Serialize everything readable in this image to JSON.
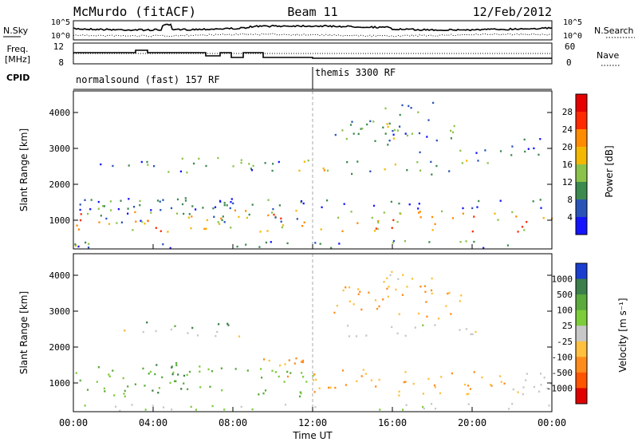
{
  "chart_data": [
    {
      "type": "line",
      "header": {
        "station": "McMurdo (fitACF)",
        "beam": "Beam 11",
        "date": "12/Feb/2012"
      },
      "panel": "noise",
      "left_label": "N.Sky",
      "right_label": "N.Search",
      "left_ticks": [
        "10^5",
        "10^0"
      ],
      "right_ticks": [
        "10^5",
        "10^0"
      ],
      "series": [
        {
          "name": "N.Sky",
          "style": "solid"
        },
        {
          "name": "N.Search",
          "style": "dotted"
        }
      ]
    },
    {
      "type": "line",
      "panel": "frequency",
      "left_label": "Freq. [MHz]",
      "right_label": "Nave",
      "left_ticks": [
        12,
        8
      ],
      "right_ticks": [
        60,
        0
      ],
      "series": [
        {
          "name": "Freq",
          "style": "solid"
        },
        {
          "name": "Nave",
          "style": "dotted"
        }
      ]
    },
    {
      "type": "table",
      "panel": "cpid",
      "label": "CPID",
      "modes": [
        {
          "text": "normalsound (fast) 157 RF",
          "start_hour": 0,
          "end_hour": 12
        },
        {
          "text": "themis 3300 RF",
          "start_hour": 12,
          "end_hour": 24
        }
      ]
    },
    {
      "type": "heatmap",
      "panel": "power",
      "ylabel": "Slant Range [km]",
      "ylim": [
        200,
        4600
      ],
      "yticks": [
        1000,
        2000,
        3000,
        4000
      ],
      "colorbar_label": "Power [dB]",
      "colorbar_ticks": [
        4,
        8,
        12,
        16,
        20,
        24,
        28
      ],
      "colorbar_colors": [
        "#1414ff",
        "#2a55b8",
        "#3d8a4e",
        "#8bc34a",
        "#f5b800",
        "#ff8c00",
        "#ff2a00",
        "#e60000"
      ],
      "blobs": [
        {
          "t0": 0.0,
          "t1": 24.0,
          "r0": 700,
          "r1": 1300,
          "level": 20
        },
        {
          "t0": 0.0,
          "t1": 24.0,
          "r0": 250,
          "r1": 450,
          "level": 10
        },
        {
          "t0": 0.3,
          "t1": 11.8,
          "r0": 950,
          "r1": 1650,
          "level": 8
        },
        {
          "t0": 1.0,
          "t1": 10.5,
          "r0": 2350,
          "r1": 2700,
          "level": 8
        },
        {
          "t0": 3.5,
          "t1": 8.5,
          "r0": 2500,
          "r1": 2800,
          "level": 14
        },
        {
          "t0": 10.5,
          "t1": 13.0,
          "r0": 2350,
          "r1": 2800,
          "level": 18
        },
        {
          "t0": 13.0,
          "t1": 19.5,
          "r0": 2900,
          "r1": 3800,
          "level": 10
        },
        {
          "t0": 13.5,
          "t1": 21.0,
          "r0": 2300,
          "r1": 2700,
          "level": 12
        },
        {
          "t0": 15.0,
          "t1": 18.0,
          "r0": 3500,
          "r1": 4300,
          "level": 12
        },
        {
          "t0": 19.5,
          "t1": 23.5,
          "r0": 2800,
          "r1": 3300,
          "level": 6
        },
        {
          "t0": 0.0,
          "t1": 24.0,
          "r0": 1300,
          "r1": 1600,
          "level": 6
        }
      ]
    },
    {
      "type": "heatmap",
      "panel": "velocity",
      "ylabel": "Slant Range [km]",
      "ylim": [
        200,
        4600
      ],
      "yticks": [
        1000,
        2000,
        3000,
        4000
      ],
      "colorbar_label": "Velocity [m s⁻¹]",
      "colorbar_ticks": [
        1000,
        500,
        100,
        25,
        -25,
        -100,
        -500,
        -1000
      ],
      "colorbar_colors": [
        "#1a3fd0",
        "#3c7f4a",
        "#5aaa3c",
        "#7dcc3a",
        "#c8c8c8",
        "#ffc040",
        "#ff8c1a",
        "#ff5500",
        "#e00000"
      ],
      "blobs": [
        {
          "t0": 0.0,
          "t1": 7.0,
          "r0": 650,
          "r1": 1500,
          "level": 100
        },
        {
          "t0": 3.0,
          "t1": 6.0,
          "r0": 650,
          "r1": 1600,
          "level": 500
        },
        {
          "t0": 7.0,
          "t1": 12.0,
          "r0": 650,
          "r1": 1450,
          "level": 100
        },
        {
          "t0": 9.5,
          "t1": 11.5,
          "r0": 800,
          "r1": 1800,
          "level": -100
        },
        {
          "t0": 12.0,
          "t1": 22.0,
          "r0": 650,
          "r1": 1400,
          "level": -100
        },
        {
          "t0": 13.0,
          "t1": 19.5,
          "r0": 2800,
          "r1": 3800,
          "level": -100
        },
        {
          "t0": 15.5,
          "t1": 18.0,
          "r0": 3600,
          "r1": 4300,
          "level": -25
        },
        {
          "t0": 13.5,
          "t1": 21.0,
          "r0": 2300,
          "r1": 2650,
          "level": 0
        },
        {
          "t0": 1.0,
          "t1": 8.5,
          "r0": 2300,
          "r1": 2550,
          "level": 0
        },
        {
          "t0": 3.0,
          "t1": 8.0,
          "r0": 2550,
          "r1": 2750,
          "level": 500
        },
        {
          "t0": 0.0,
          "t1": 24.0,
          "r0": 250,
          "r1": 450,
          "level": 25
        },
        {
          "t0": 21.0,
          "t1": 24.0,
          "r0": 700,
          "r1": 1500,
          "level": 0
        }
      ]
    }
  ],
  "x_axis": {
    "label": "Time UT",
    "ticks": [
      "00:00",
      "04:00",
      "08:00",
      "12:00",
      "16:00",
      "20:00",
      "00:00"
    ],
    "xlim": [
      0,
      24
    ]
  }
}
